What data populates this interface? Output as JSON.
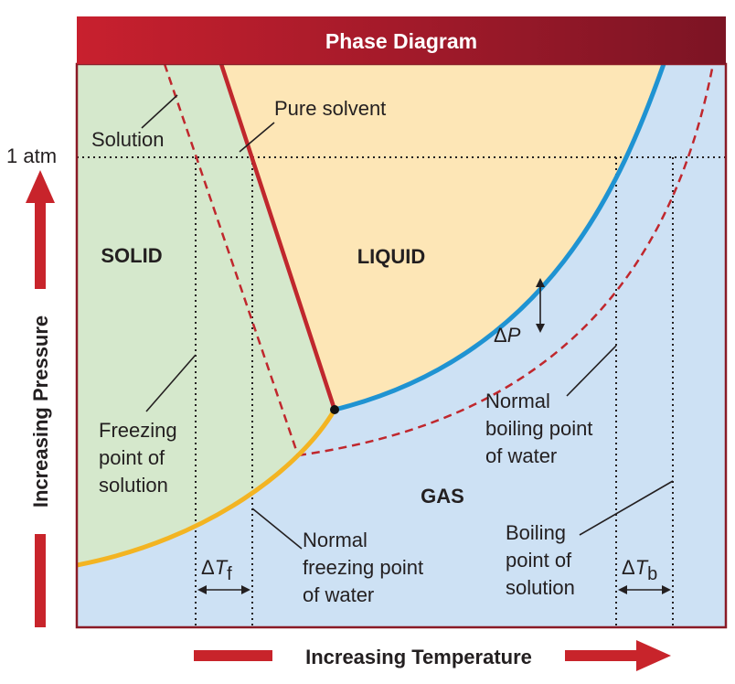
{
  "title": "Phase Diagram",
  "regions": {
    "solid": "SOLID",
    "liquid": "LIQUID",
    "gas": "GAS"
  },
  "labels": {
    "one_atm": "1 atm",
    "solution": "Solution",
    "pure_solvent": "Pure solvent",
    "freezing_solution": [
      "Freezing",
      "point of",
      "solution"
    ],
    "normal_freezing_water": [
      "Normal",
      "freezing point",
      "of water"
    ],
    "normal_boiling_water": [
      "Normal",
      "boiling point",
      "of water"
    ],
    "boiling_solution": [
      "Boiling",
      "point of",
      "solution"
    ],
    "delta_p": {
      "delta": "Δ",
      "var": "P"
    },
    "delta_tf": {
      "delta": "Δ",
      "var": "T",
      "sub": "f"
    },
    "delta_tb": {
      "delta": "Δ",
      "var": "T",
      "sub": "b"
    }
  },
  "axes": {
    "x": "Increasing Temperature",
    "y": "Increasing Pressure"
  },
  "colors": {
    "title_bar": "#a51b2b",
    "solid_region": "#d5e8cc",
    "liquid_region": "#fde6b6",
    "gas_region": "#cde1f4",
    "fusion_line": "#c0272d",
    "vaporization_line": "#1f93d2",
    "sublimation_line": "#f3b422",
    "solution_line": "#c0272d",
    "arrow": "#c8242b"
  }
}
